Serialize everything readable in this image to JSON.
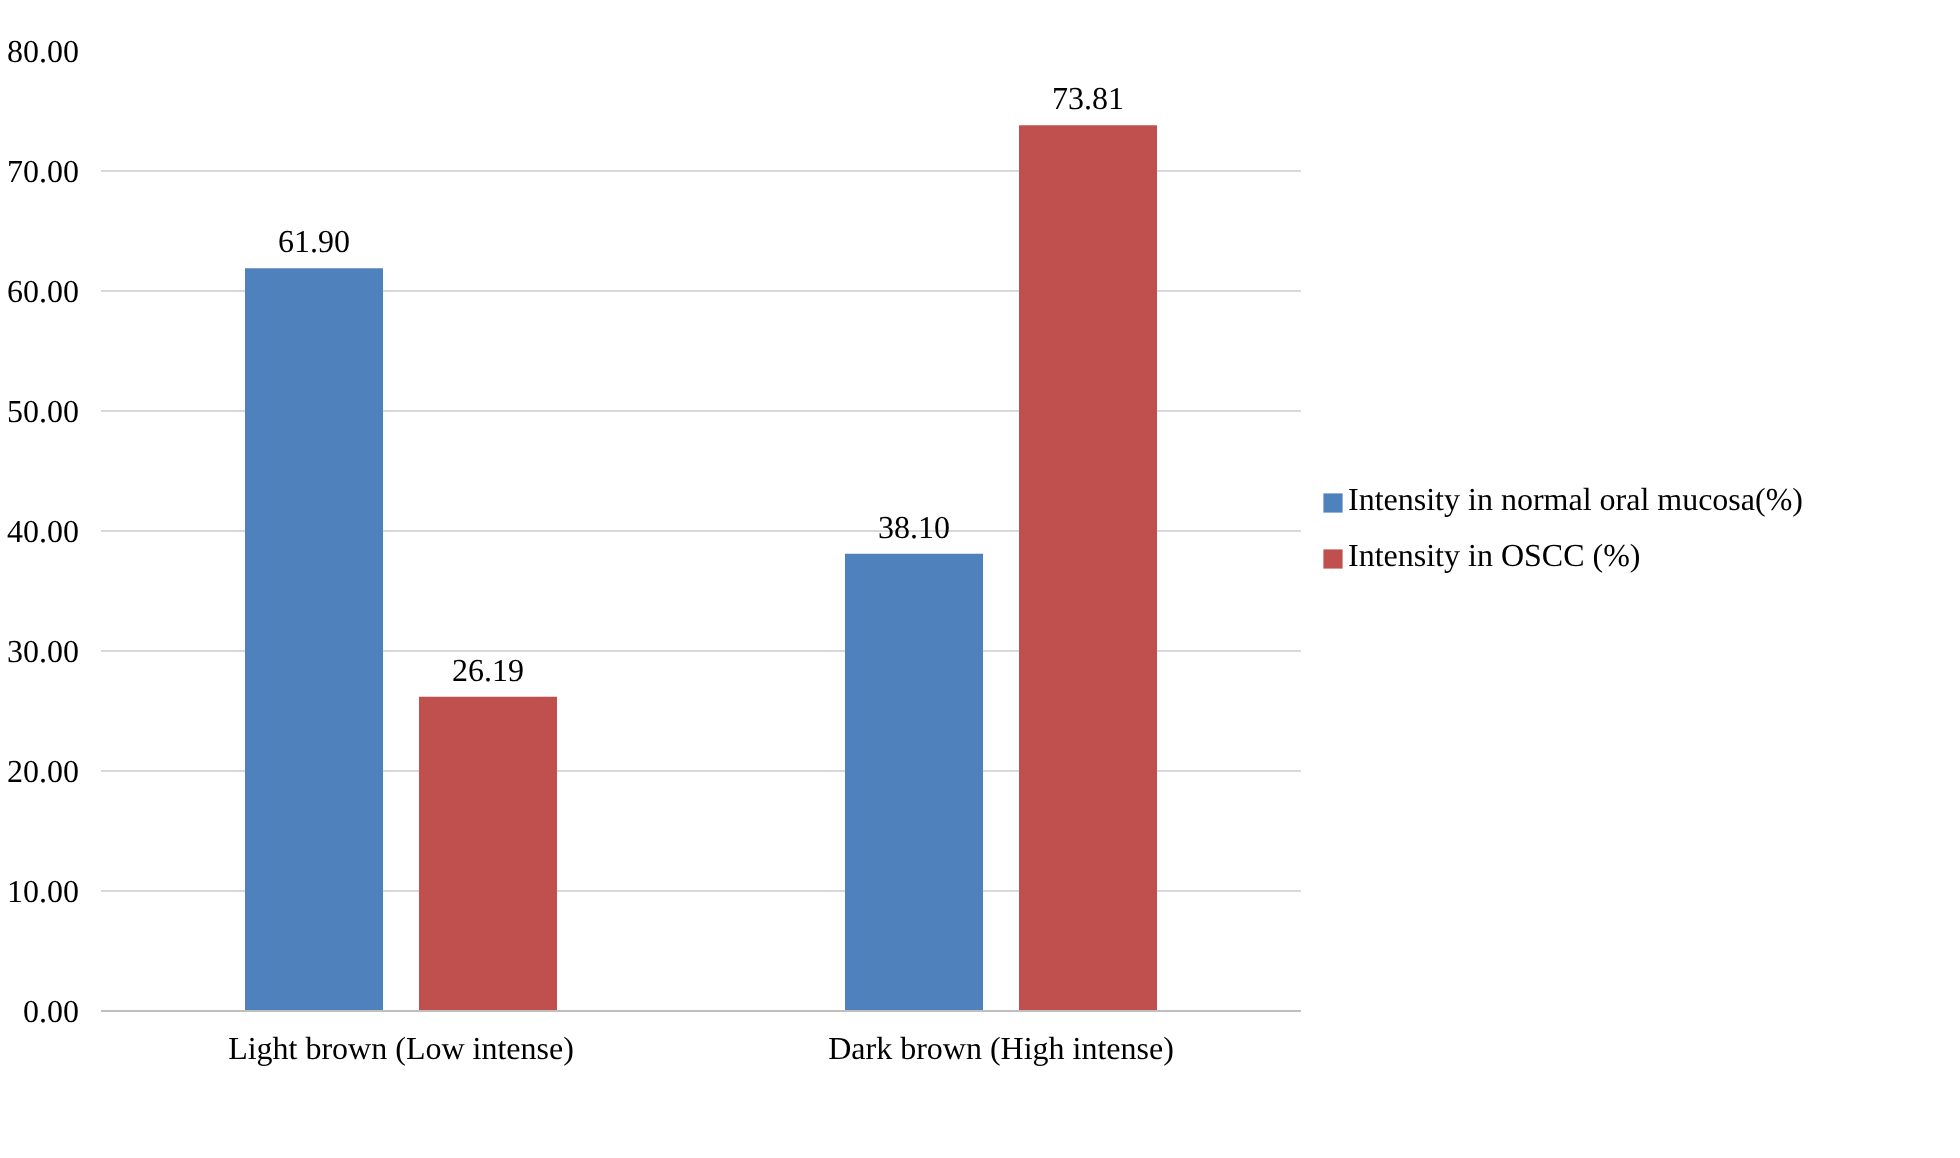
{
  "chart_data": {
    "type": "bar",
    "categories": [
      "Light brown (Low intense)",
      "Dark brown (High intense)"
    ],
    "series": [
      {
        "name": "Intensity in normal oral mucosa(%)",
        "color": "#4f81bd",
        "values": [
          61.9,
          38.1
        ],
        "value_labels": [
          "61.90",
          "38.10"
        ]
      },
      {
        "name": "Intensity in OSCC (%)",
        "color": "#c0504d",
        "values": [
          26.19,
          73.81
        ],
        "value_labels": [
          "26.19",
          "73.81"
        ]
      }
    ],
    "ylim": [
      0,
      80
    ],
    "yticks": [
      {
        "value": 0,
        "label": "0.00"
      },
      {
        "value": 10,
        "label": "10.00"
      },
      {
        "value": 20,
        "label": "20.00"
      },
      {
        "value": 30,
        "label": "30.00"
      },
      {
        "value": 40,
        "label": "40.00"
      },
      {
        "value": 50,
        "label": "50.00"
      },
      {
        "value": 60,
        "label": "60.00"
      },
      {
        "value": 70,
        "label": "70.00"
      },
      {
        "value": 80,
        "label": "80.00"
      }
    ],
    "grid": "y",
    "legend": "right"
  }
}
